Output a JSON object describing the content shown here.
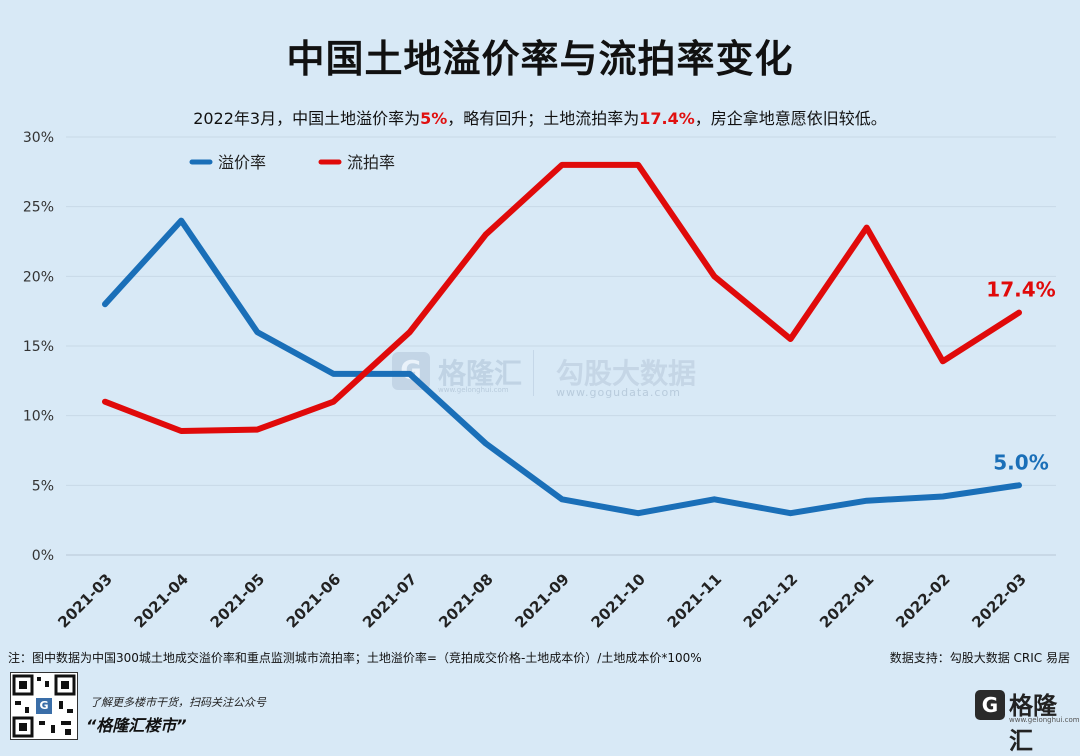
{
  "title": "中国土地溢价率与流拍率变化",
  "subtitle": {
    "part1": "2022年3月，中国土地溢价率为",
    "premium_value": "5%",
    "part2": "，略有回升；土地流拍率为",
    "failure_value": "17.4%",
    "part3": "，房企拿地意愿依旧较低。"
  },
  "chart_data": {
    "type": "line",
    "categories": [
      "2021-03",
      "2021-04",
      "2021-05",
      "2021-06",
      "2021-07",
      "2021-08",
      "2021-09",
      "2021-10",
      "2021-11",
      "2021-12",
      "2022-01",
      "2022-02",
      "2022-03"
    ],
    "series": [
      {
        "name": "溢价率",
        "color": "#1a6fb8",
        "values": [
          18,
          24,
          16,
          13,
          13,
          8,
          4,
          3,
          4,
          3,
          3.9,
          4.2,
          5.0
        ],
        "end_label": "5.0%"
      },
      {
        "name": "流拍率",
        "color": "#e00a0a",
        "values": [
          11,
          8.9,
          9,
          11,
          16,
          23,
          28,
          28,
          20,
          15.5,
          23.5,
          13.9,
          17.4
        ],
        "end_label": "17.4%"
      }
    ],
    "y_ticks": [
      "0%",
      "5%",
      "10%",
      "15%",
      "20%",
      "25%",
      "30%"
    ],
    "ylim": [
      0,
      30
    ],
    "grid": true,
    "legend_position": "top-left"
  },
  "watermark": {
    "brand_glyph": "G",
    "brand": "格隆汇",
    "brand_url": "www.gelonghui.com",
    "partner": "勾股大数据",
    "partner_url": "www.gogudata.com"
  },
  "footer": {
    "note": "注：图中数据为中国300城土地成交溢价率和重点监测城市流拍率；土地溢价率=（竞拍成交价格-土地成本价）/土地成本价*100%",
    "source": "数据支持：勾股大数据  CRIC  易居",
    "promo_line1": "了解更多楼市干货，扫码关注公众号",
    "promo_line2": "“格隆汇楼市”",
    "brand_glyph": "G",
    "brand_name": "格隆汇",
    "brand_url": "www.gelonghui.com",
    "qr_glyph": "G"
  }
}
